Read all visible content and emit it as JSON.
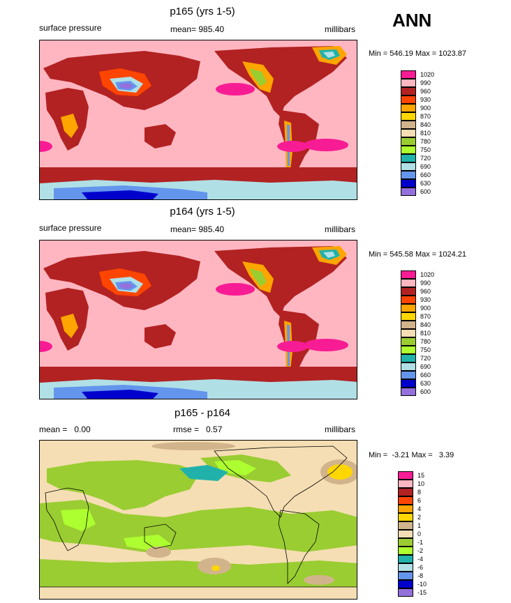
{
  "season": "ANN",
  "panels": [
    {
      "title": "p165 (yrs 1-5)",
      "left_label": "surface pressure",
      "mean_label": "mean= 985.40",
      "units": "millibars",
      "minmax": "Min = 546.19 Max = 1023.87",
      "legend": [
        {
          "label": "1020",
          "color": "#f81c94"
        },
        {
          "label": "990",
          "color": "#ffb6c1"
        },
        {
          "label": "960",
          "color": "#b22222"
        },
        {
          "label": "930",
          "color": "#ff4500"
        },
        {
          "label": "900",
          "color": "#ffa500"
        },
        {
          "label": "870",
          "color": "#ffd700"
        },
        {
          "label": "840",
          "color": "#d2b48c"
        },
        {
          "label": "810",
          "color": "#f5deb3"
        },
        {
          "label": "780",
          "color": "#9acd32"
        },
        {
          "label": "750",
          "color": "#adff2f"
        },
        {
          "label": "720",
          "color": "#20b2aa"
        },
        {
          "label": "690",
          "color": "#b0e0e6"
        },
        {
          "label": "660",
          "color": "#6495ed"
        },
        {
          "label": "630",
          "color": "#0000cd"
        },
        {
          "label": "600",
          "color": "#9370db"
        }
      ]
    },
    {
      "title": "p164 (yrs 1-5)",
      "left_label": "surface pressure",
      "mean_label": "mean= 985.40",
      "units": "millibars",
      "minmax": "Min = 545.58 Max = 1024.21",
      "legend": [
        {
          "label": "1020",
          "color": "#f81c94"
        },
        {
          "label": "990",
          "color": "#ffb6c1"
        },
        {
          "label": "960",
          "color": "#b22222"
        },
        {
          "label": "930",
          "color": "#ff4500"
        },
        {
          "label": "900",
          "color": "#ffa500"
        },
        {
          "label": "870",
          "color": "#ffd700"
        },
        {
          "label": "840",
          "color": "#d2b48c"
        },
        {
          "label": "810",
          "color": "#f5deb3"
        },
        {
          "label": "780",
          "color": "#9acd32"
        },
        {
          "label": "750",
          "color": "#adff2f"
        },
        {
          "label": "720",
          "color": "#20b2aa"
        },
        {
          "label": "690",
          "color": "#b0e0e6"
        },
        {
          "label": "660",
          "color": "#6495ed"
        },
        {
          "label": "630",
          "color": "#0000cd"
        },
        {
          "label": "600",
          "color": "#9370db"
        }
      ]
    },
    {
      "title": "p165 - p164",
      "left_label": "mean =   0.00",
      "mean_label": "rmse =   0.57",
      "units": "millibars",
      "minmax": "Min =  -3.21 Max =   3.39",
      "legend": [
        {
          "label": "15",
          "color": "#f81c94"
        },
        {
          "label": "10",
          "color": "#ffb6c1"
        },
        {
          "label": "8",
          "color": "#b22222"
        },
        {
          "label": "6",
          "color": "#ff4500"
        },
        {
          "label": "4",
          "color": "#ffa500"
        },
        {
          "label": "2",
          "color": "#ffd700"
        },
        {
          "label": "1",
          "color": "#d2b48c"
        },
        {
          "label": "0",
          "color": "#f5deb3"
        },
        {
          "label": "-1",
          "color": "#9acd32"
        },
        {
          "label": "-2",
          "color": "#adff2f"
        },
        {
          "label": "-4",
          "color": "#20b2aa"
        },
        {
          "label": "-6",
          "color": "#b0e0e6"
        },
        {
          "label": "-8",
          "color": "#6495ed"
        },
        {
          "label": "-10",
          "color": "#0000cd"
        },
        {
          "label": "-15",
          "color": "#9370db"
        }
      ]
    }
  ],
  "chart_data": [
    {
      "type": "heatmap",
      "title": "p165 (yrs 1-5)",
      "variable": "surface pressure",
      "units": "millibars",
      "mean": 985.4,
      "min": 546.19,
      "max": 1023.87,
      "contour_levels": [
        600,
        630,
        660,
        690,
        720,
        750,
        780,
        810,
        840,
        870,
        900,
        930,
        960,
        990,
        1020
      ]
    },
    {
      "type": "heatmap",
      "title": "p164 (yrs 1-5)",
      "variable": "surface pressure",
      "units": "millibars",
      "mean": 985.4,
      "min": 545.58,
      "max": 1024.21,
      "contour_levels": [
        600,
        630,
        660,
        690,
        720,
        750,
        780,
        810,
        840,
        870,
        900,
        930,
        960,
        990,
        1020
      ]
    },
    {
      "type": "heatmap",
      "title": "p165 - p164",
      "units": "millibars",
      "mean": 0.0,
      "rmse": 0.57,
      "min": -3.21,
      "max": 3.39,
      "contour_levels": [
        -15,
        -10,
        -8,
        -6,
        -4,
        -2,
        -1,
        0,
        1,
        2,
        4,
        6,
        8,
        10,
        15
      ]
    }
  ]
}
